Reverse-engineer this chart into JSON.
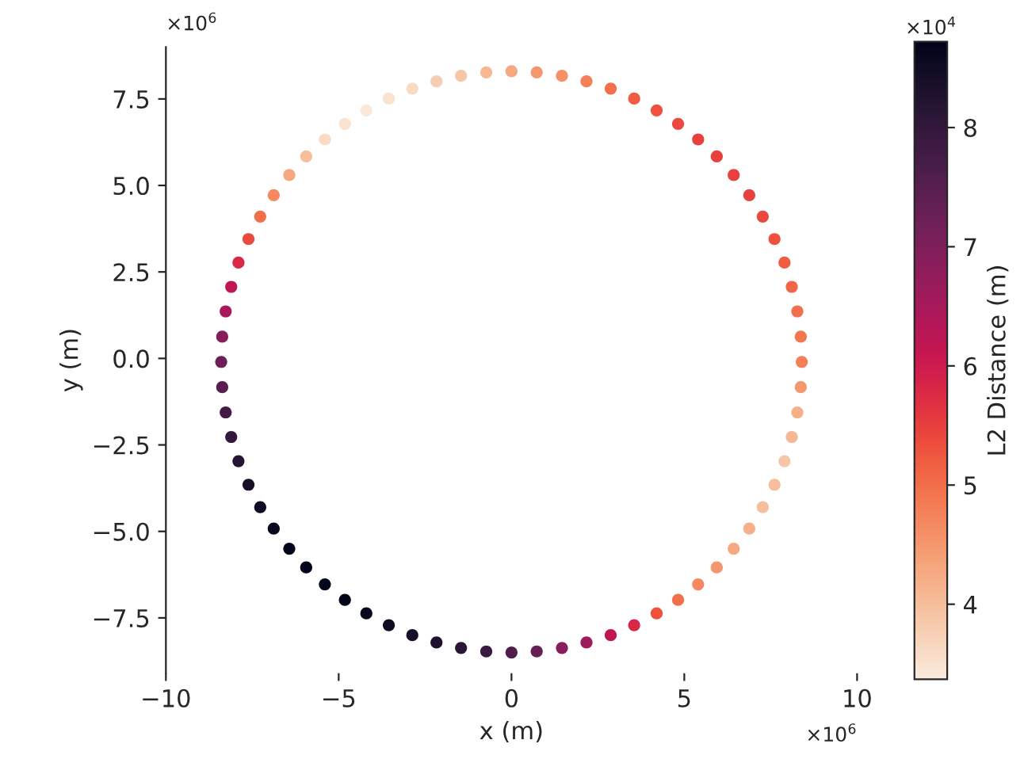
{
  "chart_data": {
    "type": "scatter",
    "xlabel": "x (m)",
    "ylabel": "y (m)",
    "clabel": "L2 Distance (m)",
    "x": [
      8.4,
      8.37,
      8.27,
      8.11,
      7.9,
      7.61,
      7.27,
      6.88,
      6.43,
      5.94,
      5.4,
      4.82,
      4.2,
      3.55,
      2.87,
      2.17,
      1.46,
      0.73,
      0,
      -0.73,
      -1.46,
      -2.17,
      -2.87,
      -3.55,
      -4.2,
      -4.82,
      -5.4,
      -5.94,
      -6.43,
      -6.88,
      -7.27,
      -7.61,
      -7.9,
      -8.11,
      -8.27,
      -8.37,
      -8.4,
      -8.37,
      -8.27,
      -8.11,
      -7.9,
      -7.61,
      -7.27,
      -6.88,
      -6.43,
      -5.94,
      -5.4,
      -4.82,
      -4.2,
      -3.55,
      -2.87,
      -2.17,
      -1.46,
      -0.73,
      0,
      0.73,
      1.46,
      2.17,
      2.87,
      3.55,
      4.2,
      4.82,
      5.4,
      5.94,
      6.43,
      6.88,
      7.27,
      7.61,
      7.9,
      8.11,
      8.27,
      8.37
    ],
    "values": [
      -0.1,
      0.63,
      1.36,
      2.07,
      2.77,
      3.45,
      4.1,
      4.72,
      5.3,
      5.84,
      6.33,
      6.78,
      7.17,
      7.51,
      7.8,
      8.01,
      8.17,
      8.27,
      8.3,
      8.27,
      8.17,
      8.01,
      7.8,
      7.51,
      7.17,
      6.78,
      6.33,
      5.84,
      5.3,
      4.72,
      4.1,
      3.45,
      2.77,
      2.07,
      1.36,
      0.63,
      -0.1,
      -0.83,
      -1.56,
      -2.27,
      -2.97,
      -3.65,
      -4.3,
      -4.92,
      -5.5,
      -6.04,
      -6.53,
      -6.98,
      -7.37,
      -7.71,
      -8.0,
      -8.21,
      -8.37,
      -8.47,
      -8.5,
      -8.47,
      -8.37,
      -8.21,
      -8.0,
      -7.71,
      -7.37,
      -6.98,
      -6.53,
      -6.04,
      -5.5,
      -4.92,
      -4.3,
      -3.65,
      -2.97,
      -2.27,
      -1.56,
      -0.83
    ],
    "cvalues": [
      4.8,
      4.9,
      5.0,
      5.1,
      5.2,
      5.3,
      5.4,
      5.5,
      5.5,
      5.5,
      5.5,
      5.4,
      5.3,
      5.2,
      5.0,
      4.8,
      4.6,
      4.5,
      4.3,
      4.1,
      3.9,
      3.8,
      3.6,
      3.5,
      3.4,
      3.5,
      3.6,
      4.0,
      4.3,
      4.7,
      5.0,
      5.4,
      5.8,
      6.2,
      6.5,
      6.9,
      7.2,
      7.5,
      7.8,
      8.0,
      8.2,
      8.4,
      8.5,
      8.6,
      8.7,
      8.7,
      8.7,
      8.7,
      8.6,
      8.5,
      8.4,
      8.3,
      8.1,
      7.9,
      7.6,
      7.3,
      6.9,
      6.6,
      6.2,
      5.8,
      5.3,
      5.0,
      4.7,
      4.5,
      4.3,
      4.2,
      4.0,
      4.0,
      3.9,
      4.1,
      4.2,
      4.5
    ],
    "xlim": [
      -10,
      10
    ],
    "ylim": [
      -9.1,
      9.0
    ],
    "xticks": [
      {
        "value": -10,
        "label": "−10"
      },
      {
        "value": -5,
        "label": "−5"
      },
      0,
      5,
      10
    ],
    "yticks": [
      {
        "value": -7.5,
        "label": "−7.5"
      },
      {
        "value": -5,
        "label": "−5.0"
      },
      {
        "value": -2.5,
        "label": "−2.5"
      },
      {
        "value": 0,
        "label": "0.0"
      },
      2.5,
      {
        "value": 5,
        "label": "5.0"
      },
      7.5
    ],
    "clim": [
      3.37,
      8.72
    ],
    "cticks": [
      4,
      5,
      6,
      7,
      8
    ],
    "annotations": [
      "×10$^{6}$",
      "×10$^{6}$",
      "×10$^{4}$"
    ],
    "grid": false
  }
}
